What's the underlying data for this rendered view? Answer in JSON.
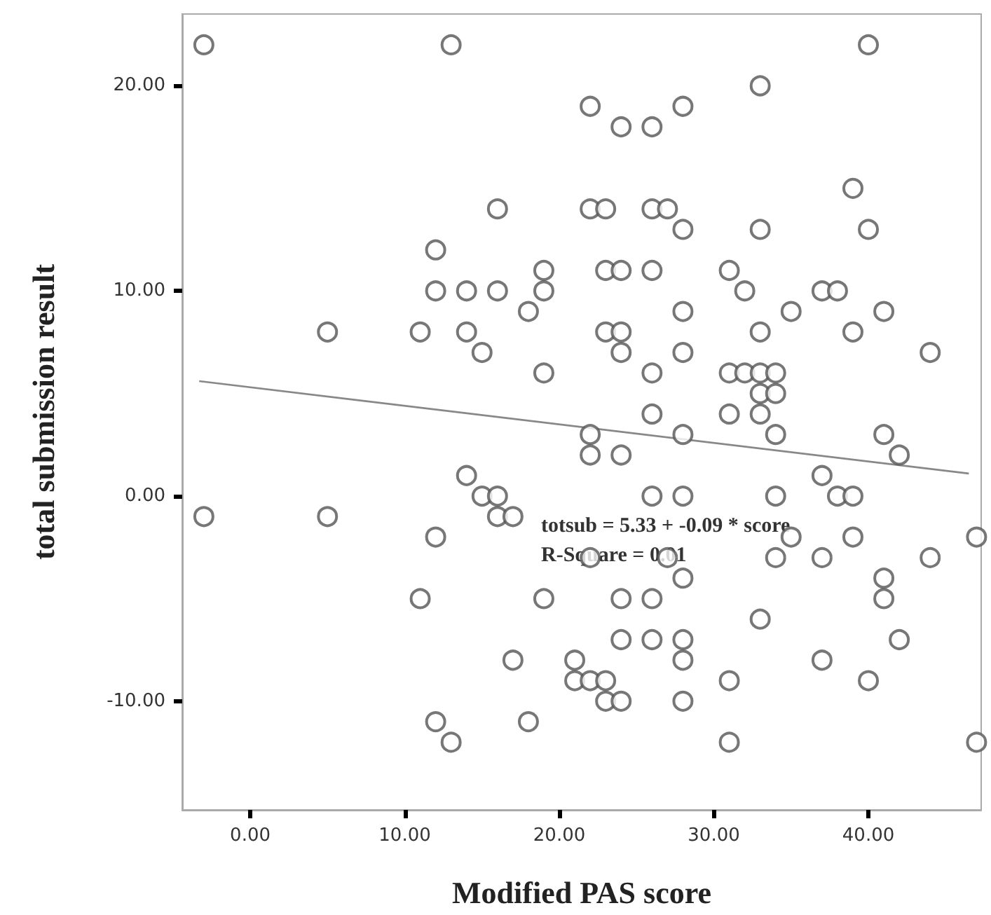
{
  "chart_data": {
    "type": "scatter",
    "xlabel": "Modified PAS score",
    "ylabel": "total submission result",
    "xlim": [
      -4.4,
      47.3
    ],
    "ylim": [
      -15.3,
      23.5
    ],
    "xticks": [
      {
        "value": 0,
        "label": "0.00"
      },
      {
        "value": 10,
        "label": "10.00"
      },
      {
        "value": 20,
        "label": "20.00"
      },
      {
        "value": 30,
        "label": "30.00"
      },
      {
        "value": 40,
        "label": "40.00"
      }
    ],
    "yticks": [
      {
        "value": -10,
        "label": "-10.00"
      },
      {
        "value": 0,
        "label": "0.00"
      },
      {
        "value": 10,
        "label": "10.00"
      },
      {
        "value": 20,
        "label": "20.00"
      }
    ],
    "grid": false,
    "annotations": [
      "totsub = 5.33 + -0.09 * score",
      "R-Square = 0.01"
    ],
    "series": [
      {
        "color": "#555555",
        "marker": "circle",
        "x": [
          -3,
          13,
          40,
          33,
          22,
          28,
          24,
          26,
          39,
          16,
          22,
          23,
          26,
          27,
          12,
          28,
          33,
          40,
          19,
          23,
          24,
          26,
          31,
          12,
          14,
          16,
          19,
          32,
          37,
          38,
          18,
          28,
          35,
          41,
          5,
          11,
          14,
          23,
          24,
          33,
          39,
          15,
          24,
          28,
          44,
          19,
          26,
          31,
          32,
          33,
          34,
          33,
          34,
          26,
          31,
          33,
          22,
          28,
          34,
          41,
          22,
          24,
          42,
          14,
          37,
          15,
          16,
          26,
          28,
          34,
          38,
          39,
          -3,
          5,
          16,
          17,
          12,
          35,
          39,
          47,
          22,
          27,
          34,
          37,
          44,
          28,
          41,
          11,
          19,
          24,
          26,
          41,
          33,
          24,
          26,
          28,
          42,
          17,
          21,
          28,
          37,
          21,
          22,
          23,
          31,
          40,
          23,
          24,
          28,
          12,
          18,
          13,
          31,
          47
        ],
        "values": [
          22,
          22,
          22,
          20,
          19,
          19,
          18,
          18,
          15,
          14,
          14,
          14,
          14,
          14,
          12,
          13,
          13,
          13,
          11,
          11,
          11,
          11,
          11,
          10,
          10,
          10,
          10,
          10,
          10,
          10,
          9,
          9,
          9,
          9,
          8,
          8,
          8,
          8,
          8,
          8,
          8,
          7,
          7,
          7,
          7,
          6,
          6,
          6,
          6,
          6,
          6,
          5,
          5,
          4,
          4,
          4,
          3,
          3,
          3,
          3,
          2,
          2,
          2,
          1,
          1,
          0,
          0,
          0,
          0,
          0,
          0,
          0,
          -1,
          -1,
          -1,
          -1,
          -2,
          -2,
          -2,
          -2,
          -3,
          -3,
          -3,
          -3,
          -3,
          -4,
          -4,
          -5,
          -5,
          -5,
          -5,
          -5,
          -6,
          -7,
          -7,
          -7,
          -7,
          -8,
          -8,
          -8,
          -8,
          -9,
          -9,
          -9,
          -9,
          -9,
          -10,
          -10,
          -10,
          -11,
          -11,
          -12,
          -12,
          -12
        ]
      },
      {
        "type": "line",
        "color": "#888888",
        "marker": "none",
        "line_style": "solid",
        "x": [
          -3.3,
          46.5
        ],
        "values": [
          5.6,
          1.1
        ]
      }
    ]
  }
}
